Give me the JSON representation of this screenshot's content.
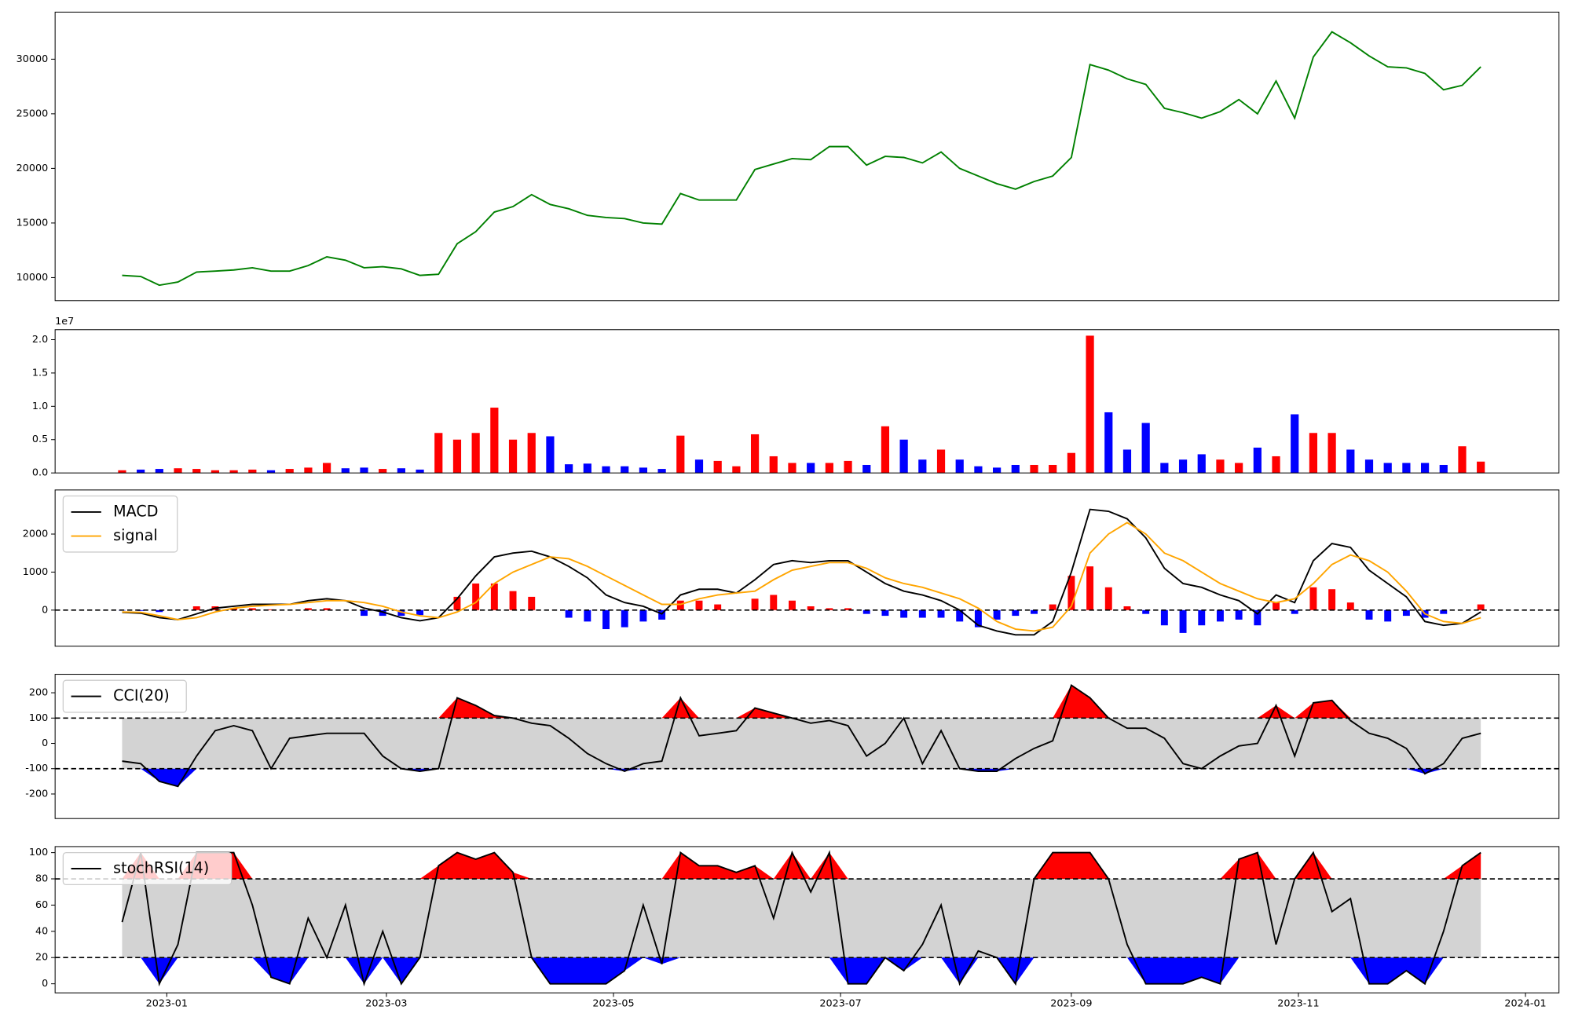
{
  "chart_data": {
    "type": "panels",
    "x": [
      -12,
      -7,
      -2,
      3,
      8,
      13,
      18,
      23,
      28,
      33,
      38,
      43,
      48,
      53,
      58,
      63,
      68,
      73,
      78,
      83,
      88,
      93,
      98,
      103,
      108,
      113,
      118,
      123,
      128,
      133,
      138,
      143,
      148,
      153,
      158,
      163,
      168,
      173,
      178,
      183,
      188,
      193,
      198,
      203,
      208,
      213,
      218,
      223,
      228,
      233,
      238,
      243,
      248,
      253,
      258,
      263,
      268,
      273,
      278,
      283,
      288,
      293,
      298,
      303,
      308,
      313,
      318,
      323,
      328,
      333,
      338,
      343,
      348,
      353
    ],
    "xlim": [
      -30,
      374
    ],
    "xticks": [
      {
        "value": 0,
        "label": "2023-01"
      },
      {
        "value": 59,
        "label": "2023-03"
      },
      {
        "value": 120,
        "label": "2023-05"
      },
      {
        "value": 181,
        "label": "2023-07"
      },
      {
        "value": 243,
        "label": "2023-09"
      },
      {
        "value": 304,
        "label": "2023-11"
      },
      {
        "value": 365,
        "label": "2024-01"
      }
    ],
    "panels": [
      {
        "type": "line",
        "ylim": [
          7890,
          34310
        ],
        "yticks": [
          10000,
          15000,
          20000,
          25000,
          30000
        ],
        "series": [
          {
            "color": "green",
            "values": [
              10200,
              10100,
              9300,
              9600,
              10500,
              10600,
              10700,
              10900,
              10600,
              10600,
              11100,
              11900,
              11600,
              10900,
              11000,
              10800,
              10200,
              10300,
              13100,
              14200,
              16000,
              16500,
              17600,
              16700,
              16300,
              15700,
              15500,
              15400,
              15000,
              14900,
              17700,
              17100,
              17100,
              17100,
              19900,
              20400,
              20900,
              20800,
              22000,
              22000,
              20300,
              21100,
              21000,
              20500,
              21500,
              20000,
              19300,
              18600,
              18100,
              18800,
              19300,
              21000,
              29500,
              29000,
              28200,
              27700,
              25500,
              25100,
              24600,
              25200,
              26300,
              25000,
              28000,
              24600,
              30200,
              32500,
              31500,
              30300,
              29300,
              29200,
              28700,
              27200,
              27600,
              29300
            ]
          }
        ]
      },
      {
        "type": "bar",
        "ylim": [
          0,
          2.15
        ],
        "offset_label": "1e7",
        "up_color": "red",
        "down_color": "blue",
        "yticks": [
          {
            "value": 0,
            "label": "0.0"
          },
          0.5,
          {
            "value": 1,
            "label": "1.0"
          },
          1.5,
          {
            "value": 2,
            "label": "2.0"
          }
        ],
        "values": [
          0.04,
          0.05,
          0.06,
          0.07,
          0.06,
          0.04,
          0.04,
          0.05,
          0.04,
          0.06,
          0.08,
          0.15,
          0.07,
          0.08,
          0.06,
          0.07,
          0.05,
          0.6,
          0.5,
          0.6,
          0.98,
          0.5,
          0.6,
          0.55,
          0.13,
          0.14,
          0.1,
          0.1,
          0.08,
          0.06,
          0.56,
          0.2,
          0.18,
          0.1,
          0.58,
          0.25,
          0.15,
          0.15,
          0.15,
          0.18,
          0.12,
          0.7,
          0.5,
          0.2,
          0.35,
          0.2,
          0.1,
          0.08,
          0.12,
          0.12,
          0.12,
          0.3,
          2.06,
          0.91,
          0.35,
          0.75,
          0.15,
          0.2,
          0.28,
          0.2,
          0.15,
          0.38,
          0.25,
          0.88,
          0.6,
          0.6,
          0.35,
          0.2,
          0.15,
          0.15,
          0.15,
          0.12,
          0.4,
          0.17
        ]
      },
      {
        "type": "macd",
        "ylim": [
          -950,
          3160
        ],
        "yticks": [
          0,
          1000,
          2000
        ],
        "reference_lines": [
          0
        ],
        "legend": "upper left",
        "positive_color": "red",
        "negative_color": "blue",
        "histogram": [
          -10,
          -20,
          -50,
          0,
          100,
          100,
          50,
          50,
          20,
          0,
          50,
          50,
          0,
          -150,
          -150,
          -150,
          -130,
          0,
          350,
          700,
          700,
          500,
          350,
          0,
          -200,
          -300,
          -500,
          -450,
          -300,
          -250,
          250,
          250,
          150,
          0,
          300,
          400,
          250,
          100,
          50,
          50,
          -100,
          -150,
          -200,
          -200,
          -200,
          -300,
          -450,
          -250,
          -150,
          -100,
          150,
          900,
          1150,
          600,
          100,
          -100,
          -400,
          -600,
          -400,
          -300,
          -250,
          -400,
          200,
          -100,
          600,
          550,
          200,
          -250,
          -300,
          -150,
          -200,
          -100,
          0,
          150
        ],
        "series": [
          {
            "name": "MACD",
            "color": "black",
            "values": [
              -60,
              -80,
              -200,
              -250,
              -100,
              50,
              100,
              150,
              150,
              150,
              250,
              300,
              250,
              50,
              -50,
              -200,
              -280,
              -200,
              300,
              900,
              1400,
              1500,
              1550,
              1400,
              1150,
              850,
              400,
              200,
              100,
              -100,
              400,
              550,
              550,
              450,
              800,
              1200,
              1300,
              1250,
              1300,
              1300,
              1000,
              700,
              500,
              400,
              250,
              0,
              -400,
              -550,
              -650,
              -650,
              -300,
              1000,
              2650,
              2600,
              2400,
              1900,
              1100,
              700,
              600,
              400,
              250,
              -100,
              400,
              200,
              1300,
              1750,
              1650,
              1050,
              700,
              350,
              -300,
              -400,
              -350,
              -50
            ]
          },
          {
            "name": "signal",
            "color": "orange",
            "values": [
              -50,
              -60,
              -150,
              -250,
              -200,
              -50,
              50,
              100,
              130,
              150,
              200,
              250,
              250,
              200,
              100,
              -50,
              -150,
              -200,
              -50,
              200,
              700,
              1000,
              1200,
              1400,
              1350,
              1150,
              900,
              650,
              400,
              150,
              150,
              300,
              400,
              450,
              500,
              800,
              1050,
              1150,
              1250,
              1250,
              1100,
              850,
              700,
              600,
              450,
              300,
              50,
              -300,
              -500,
              -550,
              -450,
              100,
              1500,
              2000,
              2300,
              2000,
              1500,
              1300,
              1000,
              700,
              500,
              300,
              200,
              300,
              700,
              1200,
              1450,
              1300,
              1000,
              500,
              -100,
              -300,
              -350,
              -200
            ]
          }
        ]
      },
      {
        "type": "band",
        "ylim": [
          -297,
          273
        ],
        "yticks": [
          -200,
          -100,
          0,
          100,
          200
        ],
        "thresholds": [
          -100,
          100
        ],
        "legend": "upper left",
        "upper_color": "red",
        "lower_color": "blue",
        "band_color": "lightgray",
        "series": [
          {
            "name": "CCI(20)",
            "color": "black",
            "values": [
              -70,
              -80,
              -150,
              -170,
              -50,
              50,
              70,
              50,
              -100,
              20,
              30,
              40,
              40,
              40,
              -50,
              -100,
              -110,
              -100,
              180,
              150,
              110,
              100,
              80,
              70,
              20,
              -40,
              -80,
              -110,
              -80,
              -70,
              180,
              30,
              40,
              50,
              140,
              120,
              100,
              80,
              90,
              70,
              -50,
              0,
              100,
              -80,
              50,
              -100,
              -110,
              -110,
              -60,
              -20,
              10,
              230,
              180,
              100,
              60,
              60,
              20,
              -80,
              -100,
              -50,
              -10,
              0,
              150,
              -50,
              160,
              170,
              90,
              40,
              20,
              -20,
              -120,
              -80,
              20,
              40
            ]
          }
        ]
      },
      {
        "type": "band",
        "ylim": [
          -6.9,
          104.6
        ],
        "yticks": [
          0,
          20,
          40,
          60,
          80,
          100
        ],
        "thresholds": [
          20,
          80
        ],
        "legend": "upper left",
        "upper_color": "red",
        "lower_color": "blue",
        "band_color": "lightgray",
        "series": [
          {
            "name": "stochRSI(14)",
            "color": "black",
            "values": [
              47,
              100,
              0,
              30,
              100,
              100,
              100,
              60,
              5,
              0,
              50,
              20,
              60,
              0,
              40,
              0,
              20,
              90,
              100,
              95,
              100,
              85,
              20,
              0,
              0,
              0,
              0,
              10,
              60,
              15,
              100,
              90,
              90,
              85,
              90,
              50,
              100,
              70,
              100,
              0,
              0,
              20,
              10,
              30,
              60,
              0,
              25,
              20,
              0,
              80,
              100,
              100,
              100,
              80,
              30,
              0,
              0,
              0,
              5,
              0,
              95,
              100,
              30,
              80,
              100,
              55,
              65,
              0,
              0,
              10,
              0,
              40,
              90,
              100
            ]
          }
        ]
      }
    ]
  }
}
